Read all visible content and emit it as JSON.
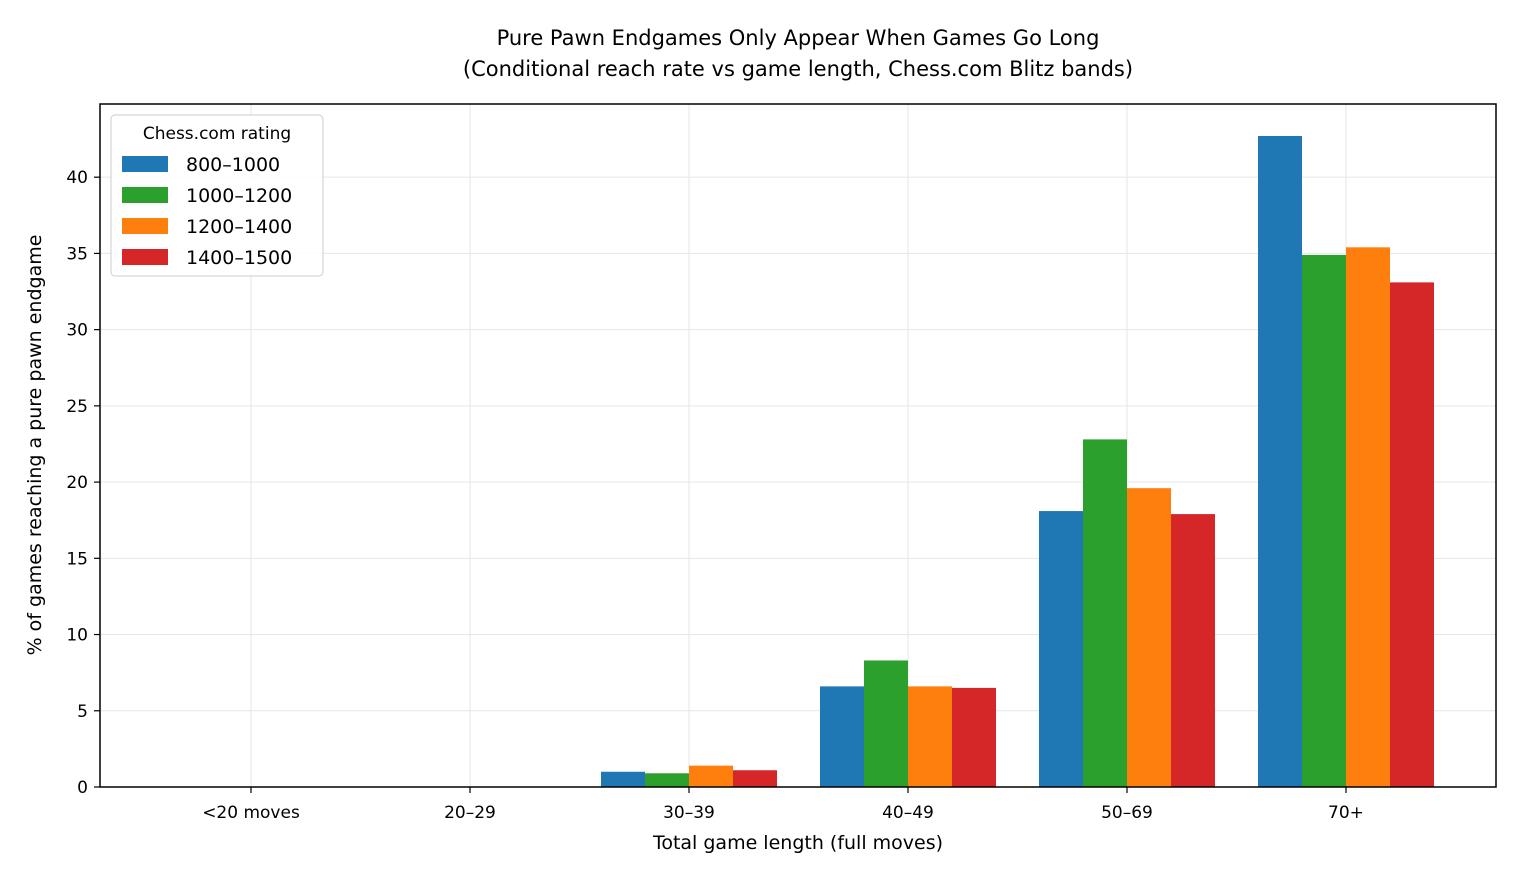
{
  "chart_data": {
    "type": "bar",
    "title": "Pure Pawn Endgames Only Appear When Games Go Long",
    "subtitle": "(Conditional reach rate vs game length, Chess.com Blitz bands)",
    "xlabel": "Total game length (full moves)",
    "ylabel": "% of games reaching a pure pawn endgame",
    "categories": [
      "<20 moves",
      "20–29",
      "30–39",
      "40–49",
      "50–69",
      "70+"
    ],
    "ylim": [
      0,
      44.8
    ],
    "yticks": [
      0,
      5,
      10,
      15,
      20,
      25,
      30,
      35,
      40
    ],
    "grid": true,
    "legend": {
      "title": "Chess.com rating",
      "position": "top-left"
    },
    "series": [
      {
        "name": "800–1000",
        "color": "#1f77b4",
        "values": [
          0,
          0,
          1.0,
          6.6,
          18.1,
          42.7
        ]
      },
      {
        "name": "1000–1200",
        "color": "#2ca02c",
        "values": [
          0,
          0,
          0.9,
          8.3,
          22.8,
          34.9
        ]
      },
      {
        "name": "1200–1400",
        "color": "#ff7f0e",
        "values": [
          0,
          0,
          1.4,
          6.6,
          19.6,
          35.4
        ]
      },
      {
        "name": "1400–1500",
        "color": "#d62728",
        "values": [
          0,
          0,
          1.1,
          6.5,
          17.9,
          33.1
        ]
      }
    ]
  }
}
